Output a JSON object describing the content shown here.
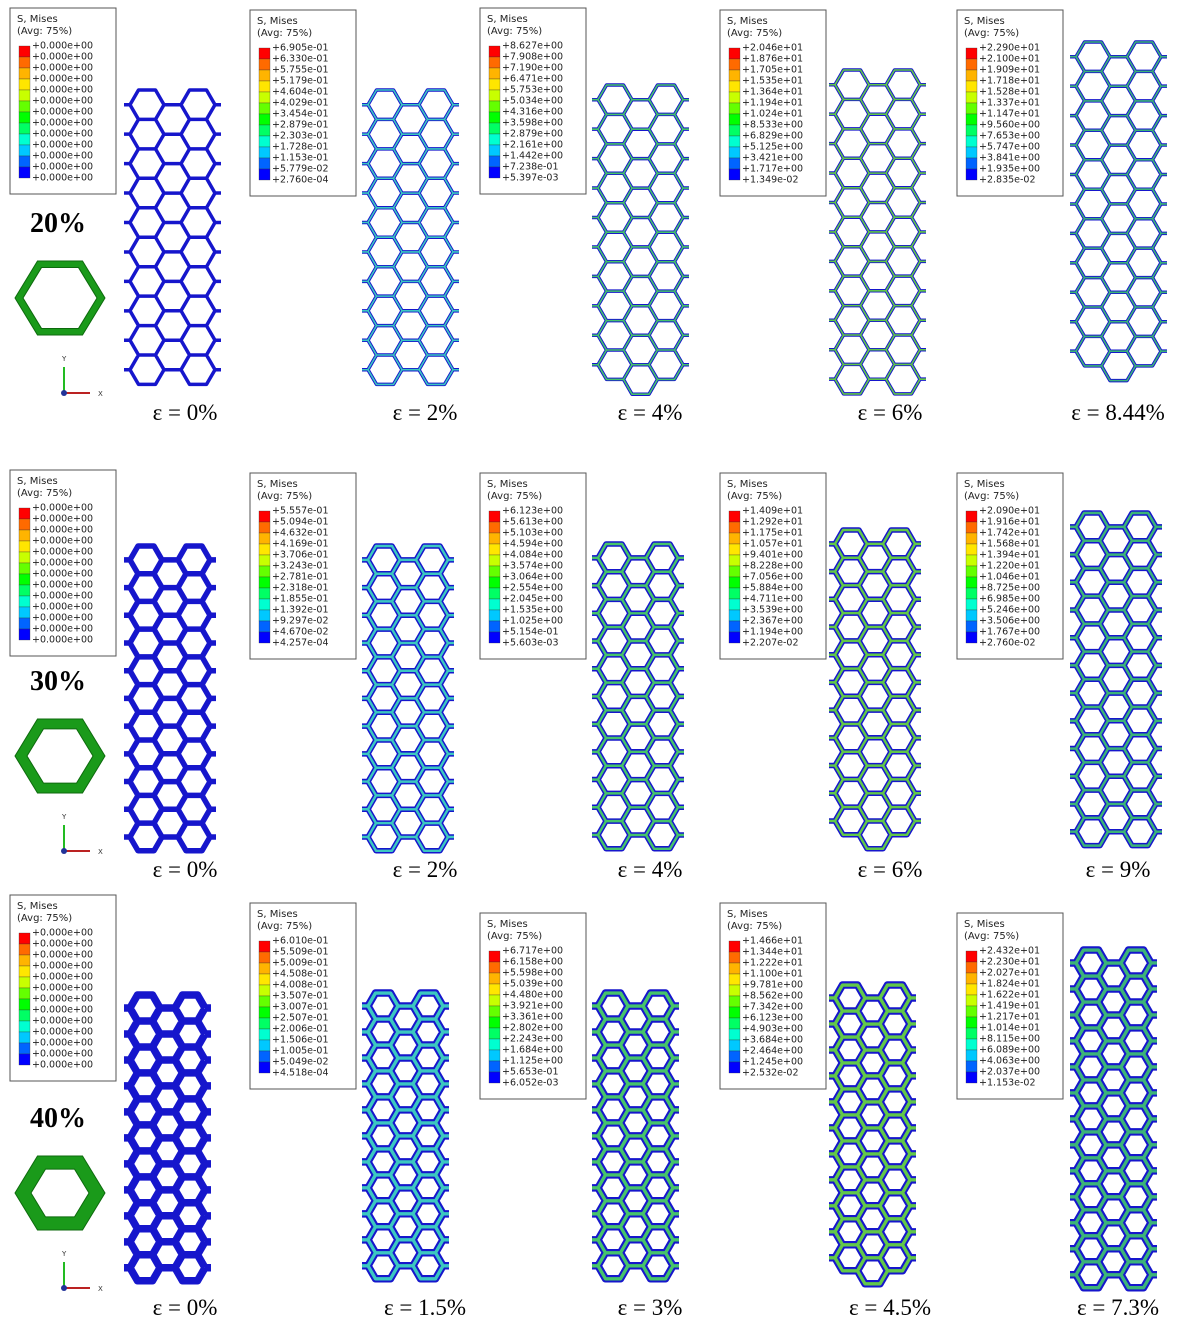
{
  "rows": [
    {
      "porosity": "20%",
      "axis_y": "Y",
      "axis_x": "X",
      "panels": [
        {
          "legend": {
            "title": "S, Mises",
            "subtitle": "(Avg: 75%)",
            "values": [
              "+0.000e+00",
              "+0.000e+00",
              "+0.000e+00",
              "+0.000e+00",
              "+0.000e+00",
              "+0.000e+00",
              "+0.000e+00",
              "+0.000e+00",
              "+0.000e+00",
              "+0.000e+00",
              "+0.000e+00",
              "+0.000e+00",
              "+0.000e+00"
            ]
          },
          "strain": "ε = 0%"
        },
        {
          "legend": {
            "title": "S, Mises",
            "subtitle": "(Avg: 75%)",
            "values": [
              "+6.905e-01",
              "+6.330e-01",
              "+5.755e-01",
              "+5.179e-01",
              "+4.604e-01",
              "+4.029e-01",
              "+3.454e-01",
              "+2.879e-01",
              "+2.303e-01",
              "+1.728e-01",
              "+1.153e-01",
              "+5.779e-02",
              "+2.760e-04"
            ]
          },
          "strain": "ε = 2%"
        },
        {
          "legend": {
            "title": "S, Mises",
            "subtitle": "(Avg: 75%)",
            "values": [
              "+8.627e+00",
              "+7.908e+00",
              "+7.190e+00",
              "+6.471e+00",
              "+5.753e+00",
              "+5.034e+00",
              "+4.316e+00",
              "+3.598e+00",
              "+2.879e+00",
              "+2.161e+00",
              "+1.442e+00",
              "+7.238e-01",
              "+5.397e-03"
            ]
          },
          "strain": "ε = 4%"
        },
        {
          "legend": {
            "title": "S, Mises",
            "subtitle": "(Avg: 75%)",
            "values": [
              "+2.046e+01",
              "+1.876e+01",
              "+1.705e+01",
              "+1.535e+01",
              "+1.364e+01",
              "+1.194e+01",
              "+1.024e+01",
              "+8.533e+00",
              "+6.829e+00",
              "+5.125e+00",
              "+3.421e+00",
              "+1.717e+00",
              "+1.349e-02"
            ]
          },
          "strain": "ε = 6%"
        },
        {
          "legend": {
            "title": "S, Mises",
            "subtitle": "(Avg: 75%)",
            "values": [
              "+2.290e+01",
              "+2.100e+01",
              "+1.909e+01",
              "+1.718e+01",
              "+1.528e+01",
              "+1.337e+01",
              "+1.147e+01",
              "+9.560e+00",
              "+7.653e+00",
              "+5.747e+00",
              "+3.841e+00",
              "+1.935e+00",
              "+2.835e-02"
            ]
          },
          "strain": "ε = 8.44%"
        }
      ]
    },
    {
      "porosity": "30%",
      "axis_y": "Y",
      "axis_x": "X",
      "panels": [
        {
          "legend": {
            "title": "S, Mises",
            "subtitle": "(Avg: 75%)",
            "values": [
              "+0.000e+00",
              "+0.000e+00",
              "+0.000e+00",
              "+0.000e+00",
              "+0.000e+00",
              "+0.000e+00",
              "+0.000e+00",
              "+0.000e+00",
              "+0.000e+00",
              "+0.000e+00",
              "+0.000e+00",
              "+0.000e+00",
              "+0.000e+00"
            ]
          },
          "strain": "ε = 0%"
        },
        {
          "legend": {
            "title": "S, Mises",
            "subtitle": "(Avg: 75%)",
            "values": [
              "+5.557e-01",
              "+5.094e-01",
              "+4.632e-01",
              "+4.169e-01",
              "+3.706e-01",
              "+3.243e-01",
              "+2.781e-01",
              "+2.318e-01",
              "+1.855e-01",
              "+1.392e-01",
              "+9.297e-02",
              "+4.670e-02",
              "+4.257e-04"
            ]
          },
          "strain": "ε = 2%"
        },
        {
          "legend": {
            "title": "S, Mises",
            "subtitle": "(Avg: 75%)",
            "values": [
              "+6.123e+00",
              "+5.613e+00",
              "+5.103e+00",
              "+4.594e+00",
              "+4.084e+00",
              "+3.574e+00",
              "+3.064e+00",
              "+2.554e+00",
              "+2.045e+00",
              "+1.535e+00",
              "+1.025e+00",
              "+5.154e-01",
              "+5.603e-03"
            ]
          },
          "strain": "ε = 4%"
        },
        {
          "legend": {
            "title": "S, Mises",
            "subtitle": "(Avg: 75%)",
            "values": [
              "+1.409e+01",
              "+1.292e+01",
              "+1.175e+01",
              "+1.057e+01",
              "+9.401e+00",
              "+8.228e+00",
              "+7.056e+00",
              "+5.884e+00",
              "+4.711e+00",
              "+3.539e+00",
              "+2.367e+00",
              "+1.194e+00",
              "+2.207e-02"
            ]
          },
          "strain": "ε = 6%"
        },
        {
          "legend": {
            "title": "S, Mises",
            "subtitle": "(Avg: 75%)",
            "values": [
              "+2.090e+01",
              "+1.916e+01",
              "+1.742e+01",
              "+1.568e+01",
              "+1.394e+01",
              "+1.220e+01",
              "+1.046e+01",
              "+8.725e+00",
              "+6.985e+00",
              "+5.246e+00",
              "+3.506e+00",
              "+1.767e+00",
              "+2.760e-02"
            ]
          },
          "strain": "ε = 9%"
        }
      ]
    },
    {
      "porosity": "40%",
      "axis_y": "Y",
      "axis_x": "X",
      "panels": [
        {
          "legend": {
            "title": "S, Mises",
            "subtitle": "(Avg: 75%)",
            "values": [
              "+0.000e+00",
              "+0.000e+00",
              "+0.000e+00",
              "+0.000e+00",
              "+0.000e+00",
              "+0.000e+00",
              "+0.000e+00",
              "+0.000e+00",
              "+0.000e+00",
              "+0.000e+00",
              "+0.000e+00",
              "+0.000e+00",
              "+0.000e+00"
            ]
          },
          "strain": "ε = 0%"
        },
        {
          "legend": {
            "title": "S, Mises",
            "subtitle": "(Avg: 75%)",
            "values": [
              "+6.010e-01",
              "+5.509e-01",
              "+5.009e-01",
              "+4.508e-01",
              "+4.008e-01",
              "+3.507e-01",
              "+3.007e-01",
              "+2.507e-01",
              "+2.006e-01",
              "+1.506e-01",
              "+1.005e-01",
              "+5.049e-02",
              "+4.518e-04"
            ]
          },
          "strain": "ε = 1.5%"
        },
        {
          "legend": {
            "title": "S, Mises",
            "subtitle": "(Avg: 75%)",
            "values": [
              "+6.717e+00",
              "+6.158e+00",
              "+5.598e+00",
              "+5.039e+00",
              "+4.480e+00",
              "+3.921e+00",
              "+3.361e+00",
              "+2.802e+00",
              "+2.243e+00",
              "+1.684e+00",
              "+1.125e+00",
              "+5.653e-01",
              "+6.052e-03"
            ]
          },
          "strain": "ε = 3%"
        },
        {
          "legend": {
            "title": "S, Mises",
            "subtitle": "(Avg: 75%)",
            "values": [
              "+1.466e+01",
              "+1.344e+01",
              "+1.222e+01",
              "+1.100e+01",
              "+9.781e+00",
              "+8.562e+00",
              "+7.342e+00",
              "+6.123e+00",
              "+4.903e+00",
              "+3.684e+00",
              "+2.464e+00",
              "+1.245e+00",
              "+2.532e-02"
            ]
          },
          "strain": "ε = 4.5%"
        },
        {
          "legend": {
            "title": "S, Mises",
            "subtitle": "(Avg: 75%)",
            "values": [
              "+2.432e+01",
              "+2.230e+01",
              "+2.027e+01",
              "+1.824e+01",
              "+1.622e+01",
              "+1.419e+01",
              "+1.217e+01",
              "+1.014e+01",
              "+8.115e+00",
              "+6.089e+00",
              "+4.063e+00",
              "+2.037e+00",
              "+1.153e-02"
            ]
          },
          "strain": "ε = 7.3%"
        }
      ]
    }
  ]
}
